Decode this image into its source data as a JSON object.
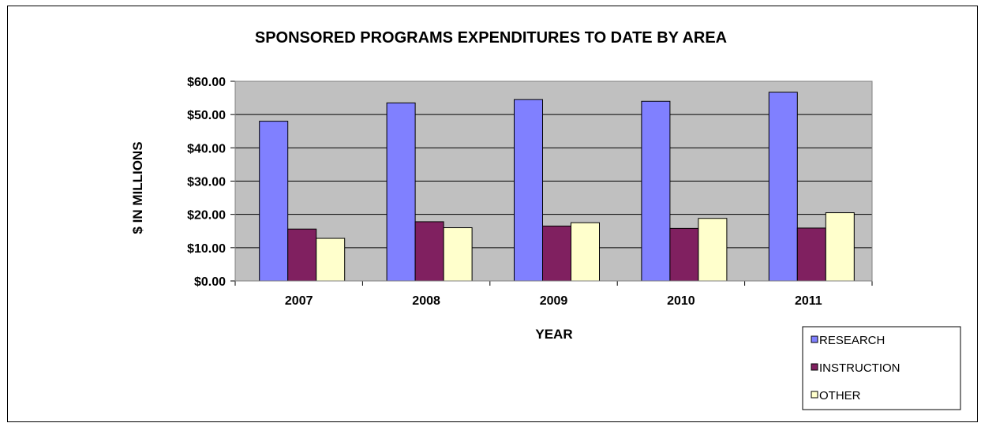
{
  "chart_data": {
    "type": "bar",
    "title": "SPONSORED PROGRAMS EXPENDITURES  TO DATE BY AREA",
    "xlabel": "YEAR",
    "ylabel": "$ IN MILLIONS",
    "categories": [
      "2007",
      "2008",
      "2009",
      "2010",
      "2011"
    ],
    "ylim": [
      0,
      60
    ],
    "y_ticks": [
      {
        "value": 0,
        "label": "$0.00"
      },
      {
        "value": 10,
        "label": "$10.00"
      },
      {
        "value": 20,
        "label": "$20.00"
      },
      {
        "value": 30,
        "label": "$30.00"
      },
      {
        "value": 40,
        "label": "$40.00"
      },
      {
        "value": 50,
        "label": "$50.00"
      },
      {
        "value": 60,
        "label": "$60.00"
      }
    ],
    "grid": true,
    "legend_position": "bottom-right",
    "plot_background": "#c0c0c0",
    "series": [
      {
        "name": "RESEARCH",
        "color": "#8080ff",
        "values": [
          48.0,
          53.5,
          54.5,
          54.0,
          56.7
        ]
      },
      {
        "name": "INSTRUCTION",
        "color": "#802060",
        "values": [
          15.6,
          17.8,
          16.5,
          15.8,
          15.9
        ]
      },
      {
        "name": "OTHER",
        "color": "#ffffcc",
        "values": [
          12.8,
          16.0,
          17.5,
          18.8,
          20.5
        ]
      }
    ]
  }
}
